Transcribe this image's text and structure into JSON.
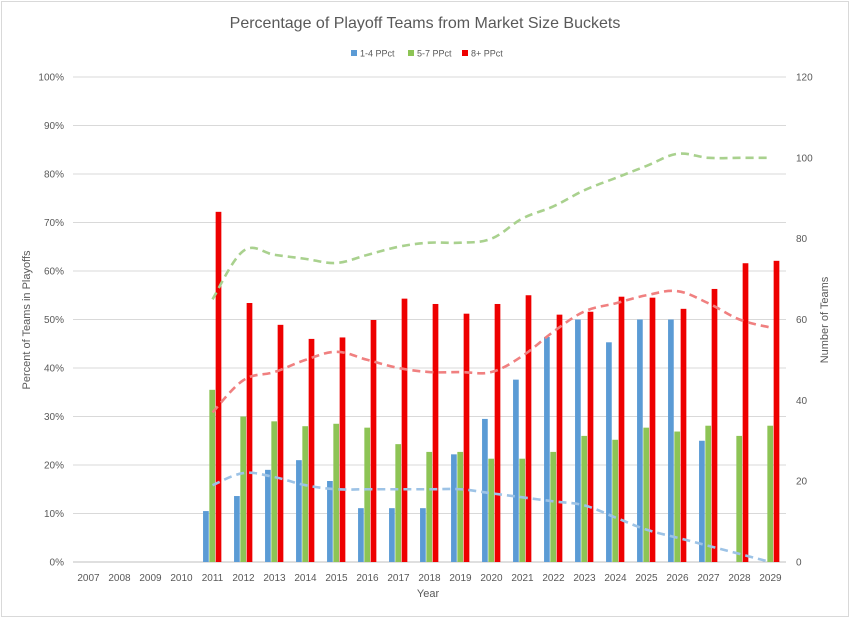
{
  "chart_data": {
    "type": "bar",
    "title": "Percentage of Playoff Teams from Market Size Buckets",
    "xlabel": "Year",
    "ylabel": "Percent of Teams in Playoffs",
    "y2label": "Number of Teams",
    "ylim": [
      0,
      100
    ],
    "y2lim": [
      0,
      120
    ],
    "y_ticks": [
      "0%",
      "10%",
      "20%",
      "30%",
      "40%",
      "50%",
      "60%",
      "70%",
      "80%",
      "90%",
      "100%"
    ],
    "y2_ticks": [
      "0",
      "20",
      "40",
      "60",
      "80",
      "100",
      "120"
    ],
    "grid": true,
    "legend_position": "top",
    "categories": [
      "2007",
      "2008",
      "2009",
      "2010",
      "2011",
      "2012",
      "2013",
      "2014",
      "2015",
      "2016",
      "2017",
      "2018",
      "2019",
      "2020",
      "2021",
      "2022",
      "2023",
      "2024",
      "2025",
      "2026",
      "2027",
      "2028",
      "2029"
    ],
    "series": [
      {
        "name": "1-4 PPct",
        "color": "#5b9bd5",
        "values": [
          null,
          null,
          null,
          null,
          10.5,
          13.6,
          19,
          21,
          16.7,
          11.1,
          11.1,
          11.1,
          22.2,
          29.5,
          37.6,
          46.4,
          50,
          45.3,
          50,
          50,
          25,
          null,
          null
        ]
      },
      {
        "name": "5-7 PPct",
        "color": "#8dc455",
        "values": [
          null,
          null,
          null,
          null,
          35.5,
          30,
          29,
          28,
          28.5,
          27.7,
          24.3,
          22.7,
          22.7,
          21.3,
          21.3,
          22.7,
          26,
          25.2,
          27.7,
          26.9,
          28.1,
          26,
          28.1
        ]
      },
      {
        "name": "8+ PPct",
        "color": "#ee0000",
        "values": [
          null,
          null,
          null,
          null,
          72.2,
          53.4,
          48.9,
          46,
          46.3,
          49.9,
          54.3,
          53.2,
          51.2,
          53.2,
          55,
          51,
          51.6,
          54.7,
          54.5,
          52.2,
          56.3,
          61.6,
          62.1
        ]
      }
    ],
    "trend_lines": [
      {
        "series": "1-4 PPct",
        "axis": "secondary",
        "color": "#9dc3e6",
        "values": [
          null,
          null,
          null,
          null,
          19,
          22,
          21,
          19,
          18,
          18,
          18,
          18,
          18,
          17,
          16,
          15,
          14,
          11,
          8,
          6,
          4,
          2,
          0
        ]
      },
      {
        "series": "5-7 PPct",
        "axis": "secondary",
        "color": "#a9d18e",
        "values": [
          null,
          null,
          null,
          null,
          65,
          77,
          76,
          75,
          74,
          76,
          78,
          79,
          79,
          80,
          85,
          88,
          92,
          95,
          98,
          101,
          100,
          100,
          100
        ]
      },
      {
        "series": "8+ PPct",
        "axis": "secondary",
        "color": "#f08080",
        "values": [
          null,
          null,
          null,
          null,
          37,
          45,
          47,
          50,
          52,
          50,
          48,
          47,
          47,
          47,
          51,
          57,
          62,
          64,
          66,
          67,
          64,
          60,
          58
        ]
      }
    ]
  }
}
